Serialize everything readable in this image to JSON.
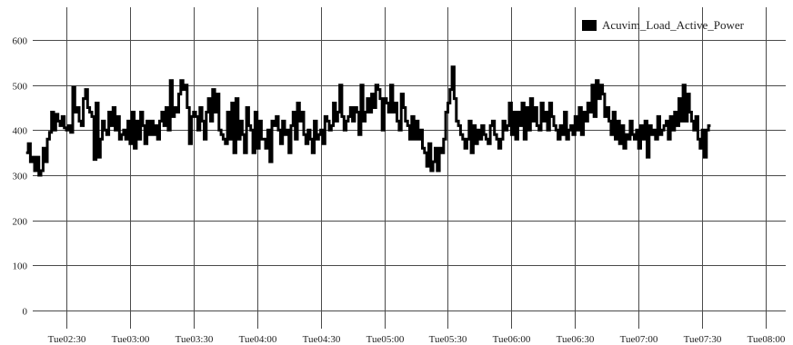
{
  "chart_data": {
    "type": "line",
    "step": true,
    "x_unit": "time",
    "x_start": "02:11",
    "x_interval_minutes": 1,
    "ylim": [
      0,
      650
    ],
    "y_ticks": [
      0,
      100,
      200,
      300,
      400,
      500,
      600
    ],
    "x_ticks": [
      {
        "label": "Tue02:30",
        "time": "02:30"
      },
      {
        "label": "Tue03:00",
        "time": "03:00"
      },
      {
        "label": "Tue03:30",
        "time": "03:30"
      },
      {
        "label": "Tue04:00",
        "time": "04:00"
      },
      {
        "label": "Tue04:30",
        "time": "04:30"
      },
      {
        "label": "Tue05:00",
        "time": "05:00"
      },
      {
        "label": "Tue05:30",
        "time": "05:30"
      },
      {
        "label": "Tue06:00",
        "time": "06:00"
      },
      {
        "label": "Tue06:30",
        "time": "06:30"
      },
      {
        "label": "Tue07:00",
        "time": "07:00"
      },
      {
        "label": "Tue07:30",
        "time": "07:30"
      },
      {
        "label": "Tue08:00",
        "time": "08:00"
      }
    ],
    "grid": true,
    "legend_position": "top-right",
    "series": [
      {
        "name": "Acuvim_Load_Active_Power",
        "color": "#000000",
        "values": [
          350,
          370,
          330,
          340,
          310,
          340,
          300,
          310,
          360,
          330,
          380,
          395,
          440,
          400,
          435,
          420,
          410,
          430,
          405,
          400,
          410,
          395,
          495,
          440,
          450,
          420,
          410,
          470,
          490,
          450,
          440,
          430,
          335,
          460,
          340,
          380,
          420,
          400,
          390,
          440,
          410,
          450,
          400,
          430,
          380,
          390,
          400,
          380,
          420,
          370,
          440,
          360,
          420,
          380,
          440,
          410,
          370,
          420,
          390,
          420,
          390,
          410,
          380,
          420,
          440,
          410,
          450,
          400,
          510,
          430,
          450,
          440,
          480,
          510,
          490,
          500,
          450,
          370,
          430,
          440,
          430,
          400,
          450,
          420,
          380,
          440,
          470,
          420,
          490,
          440,
          480,
          400,
          390,
          380,
          370,
          440,
          380,
          460,
          350,
          470,
          380,
          420,
          390,
          350,
          450,
          410,
          400,
          350,
          440,
          360,
          420,
          380,
          380,
          360,
          400,
          330,
          420,
          410,
          430,
          400,
          370,
          420,
          390,
          400,
          350,
          410,
          440,
          380,
          460,
          420,
          440,
          390,
          370,
          400,
          380,
          350,
          420,
          380,
          390,
          400,
          370,
          430,
          420,
          400,
          410,
          460,
          420,
          440,
          500,
          430,
          400,
          420,
          430,
          450,
          420,
          450,
          440,
          390,
          500,
          420,
          440,
          470,
          440,
          480,
          450,
          500,
          490,
          470,
          400,
          470,
          460,
          440,
          500,
          440,
          460,
          420,
          400,
          480,
          450,
          420,
          410,
          380,
          430,
          380,
          420,
          380,
          400,
          360,
          350,
          320,
          370,
          310,
          330,
          360,
          310,
          360,
          350,
          380,
          440,
          460,
          490,
          540,
          470,
          420,
          410,
          390,
          380,
          360,
          380,
          420,
          350,
          410,
          370,
          400,
          380,
          410,
          390,
          380,
          370,
          410,
          420,
          390,
          380,
          360,
          380,
          420,
          400,
          410,
          460,
          390,
          440,
          380,
          440,
          410,
          460,
          380,
          450,
          400,
          470,
          420,
          450,
          410,
          400,
          460,
          420,
          440,
          400,
          460,
          430,
          410,
          400,
          380,
          410,
          390,
          440,
          380,
          400,
          410,
          390,
          430,
          400,
          450,
          390,
          440,
          420,
          460,
          440,
          500,
          430,
          510,
          470,
          500,
          480,
          430,
          450,
          420,
          390,
          440,
          380,
          420,
          370,
          410,
          360,
          390,
          380,
          420,
          390,
          380,
          400,
          360,
          410,
          380,
          420,
          340,
          410,
          390,
          400,
          380,
          430,
          390,
          400,
          410,
          420,
          380,
          430,
          400,
          440,
          410,
          470,
          420,
          500,
          420,
          480,
          440,
          420,
          400,
          430,
          380,
          360,
          400,
          340,
          400,
          410
        ]
      }
    ]
  }
}
